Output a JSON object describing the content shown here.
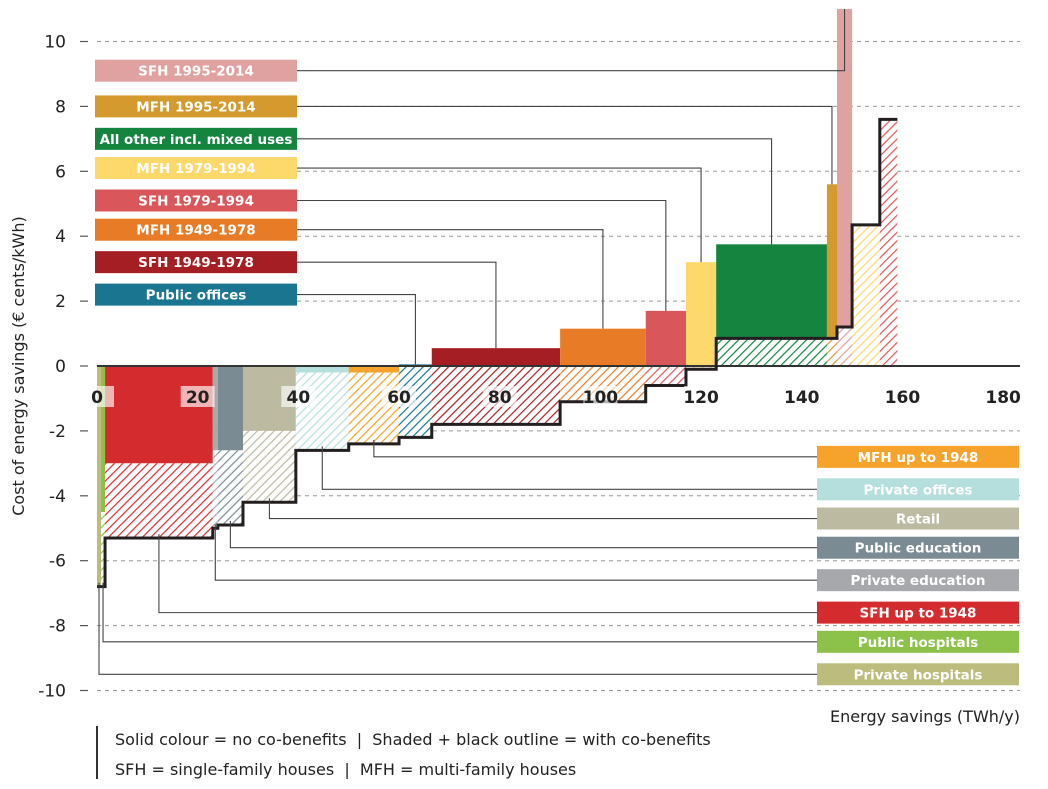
{
  "chart_data": {
    "type": "bar",
    "subtype": "marginal abatement cost curve (variable-width bars)",
    "title": "",
    "xlabel": "Energy savings (TWh/y)",
    "ylabel": "Cost of energy savings (€ cents/kWh)",
    "xlim": [
      0,
      182
    ],
    "ylim": [
      -10,
      10.9
    ],
    "x_ticks": [
      "0",
      "20",
      "40",
      "60",
      "80",
      "100",
      "120",
      "140",
      "160",
      "180"
    ],
    "y_ticks": [
      "10",
      "8",
      "6",
      "4",
      "2",
      "0",
      "-2",
      "-4",
      "-6",
      "-8",
      "-10"
    ],
    "grid": "horizontal dashed",
    "notes": [
      "Solid colour = no co-benefits  |  Shaded + black outline = with co-benefits",
      "SFH = single-family houses  |  MFH = multi-family houses"
    ],
    "segments": [
      {
        "name": "Private hospitals",
        "color": "#bcbd7d",
        "x0": 0.0,
        "x1": 0.8,
        "cost": -6.8,
        "cost_with_cobenefits": -6.8,
        "label_y": -9.5
      },
      {
        "name": "Public hospitals",
        "color": "#8cc24a",
        "x0": 0.8,
        "x1": 1.6,
        "cost": -4.5,
        "cost_with_cobenefits": -6.8,
        "label_y": -8.5
      },
      {
        "name": "SFH up to 1948",
        "color": "#d42b2f",
        "x0": 1.6,
        "x1": 23.0,
        "cost": -3.0,
        "cost_with_cobenefits": -5.3,
        "label_y": -7.6
      },
      {
        "name": "Private education",
        "color": "#a6a8ab",
        "x0": 23.0,
        "x1": 24.0,
        "cost": -2.6,
        "cost_with_cobenefits": -5.0,
        "label_y": -6.6
      },
      {
        "name": "Public education",
        "color": "#7a8b93",
        "x0": 24.0,
        "x1": 29.0,
        "cost": -2.6,
        "cost_with_cobenefits": -4.9,
        "label_y": -5.6
      },
      {
        "name": "Retail",
        "color": "#bcbaa0",
        "x0": 29.0,
        "x1": 39.5,
        "cost": -2.0,
        "cost_with_cobenefits": -4.2,
        "label_y": -4.7
      },
      {
        "name": "Private offices",
        "color": "#b5dfdd",
        "x0": 39.5,
        "x1": 50.0,
        "cost": -0.2,
        "cost_with_cobenefits": -2.6,
        "label_y": -3.8
      },
      {
        "name": "MFH up to 1948",
        "color": "#f5a32a",
        "x0": 50.0,
        "x1": 60.0,
        "cost": -0.2,
        "cost_with_cobenefits": -2.4,
        "label_y": -2.8
      },
      {
        "name": "Public offices",
        "color": "#1a7590",
        "x0": 60.0,
        "x1": 66.5,
        "cost": 0.05,
        "cost_with_cobenefits": -2.2,
        "label_y": 2.2
      },
      {
        "name": "SFH 1949-1978",
        "color": "#a51e23",
        "x0": 66.5,
        "x1": 92.0,
        "cost": 0.55,
        "cost_with_cobenefits": -1.8,
        "label_y": 3.2
      },
      {
        "name": "MFH 1949-1978",
        "color": "#e87b25",
        "x0": 92.0,
        "x1": 109.0,
        "cost": 1.15,
        "cost_with_cobenefits": -1.1,
        "label_y": 4.2
      },
      {
        "name": "SFH 1979-1994",
        "color": "#d9565a",
        "x0": 109.0,
        "x1": 117.0,
        "cost": 1.7,
        "cost_with_cobenefits": -0.6,
        "label_y": 5.1
      },
      {
        "name": "MFH 1979-1994",
        "color": "#fdd86b",
        "x0": 117.0,
        "x1": 123.0,
        "cost": 3.2,
        "cost_with_cobenefits": -0.1,
        "label_y": 6.1
      },
      {
        "name": "All other incl. mixed uses",
        "color": "#14843f",
        "x0": 123.0,
        "x1": 145.0,
        "cost": 3.75,
        "cost_with_cobenefits": 0.85,
        "label_y": 7.0
      },
      {
        "name": "MFH 1995-2014",
        "color": "#d49a2e",
        "x0": 145.0,
        "x1": 147.0,
        "cost": 5.6,
        "cost_with_cobenefits": 0.85,
        "label_y": 8.0
      },
      {
        "name": "SFH 1995-2014",
        "color": "#e0a1a1",
        "x0": 147.0,
        "x1": 150.0,
        "cost": 11.0,
        "cost_with_cobenefits": 1.2,
        "label_y": 9.1
      },
      {
        "name": "",
        "color": "#fdd86b",
        "x0": 150.0,
        "x1": 155.5,
        "cost": null,
        "cost_with_cobenefits": 4.35
      },
      {
        "name": "",
        "color": "#d9565a",
        "x0": 155.5,
        "x1": 159.0,
        "cost": null,
        "cost_with_cobenefits": 7.6
      }
    ]
  }
}
